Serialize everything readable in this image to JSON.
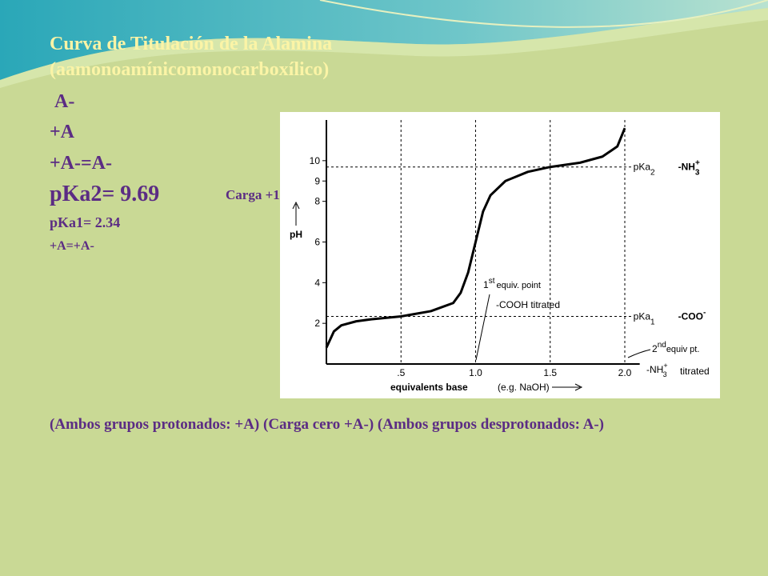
{
  "slide": {
    "title": [
      "Curva de Titulación de la Alamina",
      "(aamonoamínicomonocarboxílico)"
    ],
    "lines": [
      "A-",
      "+A",
      "+A-=A-"
    ],
    "pka2": "pKa2= 9.69",
    "charge": "Carga +1",
    "pka1": "pKa1= 2.34",
    "equality": "+A=+A-",
    "footer": "(Ambos grupos protonados: +A) (Carga cero +A-) (Ambos grupos desprotonados: A-)"
  },
  "chart_data": {
    "type": "line",
    "ylabel": "pH",
    "xlabel": "equivalents base",
    "xlabel_note": "(e.g. NaOH)",
    "x": [
      0,
      0.05,
      0.1,
      0.2,
      0.3,
      0.5,
      0.7,
      0.85,
      0.9,
      0.95,
      1.0,
      1.05,
      1.1,
      1.2,
      1.35,
      1.5,
      1.7,
      1.85,
      1.95,
      2.0
    ],
    "series": [
      {
        "color": "#000000",
        "values": [
          0.8,
          1.6,
          1.9,
          2.1,
          2.2,
          2.34,
          2.6,
          3.0,
          3.5,
          4.5,
          6.0,
          7.5,
          8.3,
          9.0,
          9.45,
          9.69,
          9.9,
          10.2,
          10.7,
          11.6
        ]
      }
    ],
    "xlim": [
      0,
      2.1
    ],
    "ylim": [
      0,
      12
    ],
    "xticks": [
      {
        "value": 0.5,
        "label": ".5"
      },
      {
        "value": 1.0,
        "label": "1.0"
      },
      {
        "value": 1.5,
        "label": "1.5"
      },
      {
        "value": 2.0,
        "label": "2.0"
      }
    ],
    "yticks": [
      2,
      4,
      6,
      8,
      9,
      10
    ],
    "reference_lines": [
      {
        "value": 2.34,
        "label": "pKa",
        "sub": "1",
        "group": "-COO",
        "group_sup": "-"
      },
      {
        "value": 9.69,
        "label": "pKa",
        "sub": "2",
        "group": "-NH",
        "group_sub": "3",
        "group_sup": "+"
      }
    ],
    "first_equivalence": {
      "num": "1",
      "sup": "st",
      "text": "equiv. point",
      "detail": "-COOH titrated"
    },
    "second_equivalence": {
      "num": "2",
      "sup": "nd",
      "text": "equiv pt.",
      "group": "-NH",
      "group_sub": "3",
      "group_sup": "+",
      "detail": "titrated"
    }
  }
}
